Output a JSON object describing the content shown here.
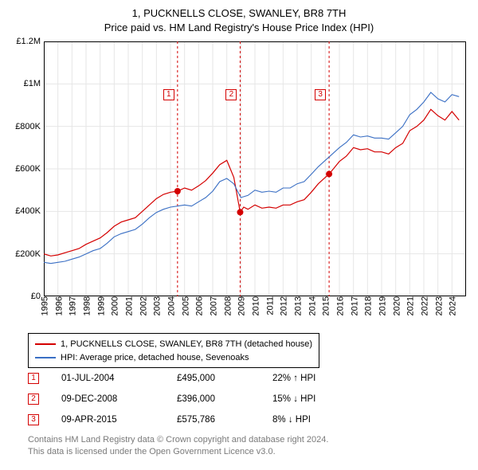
{
  "title": "1, PUCKNELLS CLOSE, SWANLEY, BR8 7TH",
  "subtitle": "Price paid vs. HM Land Registry's House Price Index (HPI)",
  "chart": {
    "type": "line",
    "background_color": "#ffffff",
    "grid_color": "#e6e6e6",
    "axis_color": "#000000",
    "font_size_ticks": 11,
    "xlim": [
      1995,
      2025
    ],
    "ylim": [
      0,
      1200000
    ],
    "yticks": [
      0,
      200000,
      400000,
      600000,
      800000,
      1000000,
      1200000
    ],
    "ytick_labels": [
      "£0",
      "£200K",
      "£400K",
      "£600K",
      "£800K",
      "£1M",
      "£1.2M"
    ],
    "xticks": [
      1995,
      1996,
      1997,
      1998,
      1999,
      2000,
      2001,
      2002,
      2003,
      2004,
      2005,
      2006,
      2007,
      2008,
      2009,
      2010,
      2011,
      2012,
      2013,
      2014,
      2015,
      2016,
      2017,
      2018,
      2019,
      2020,
      2021,
      2022,
      2023,
      2024
    ],
    "series": [
      {
        "name": "1, PUCKNELLS CLOSE, SWANLEY, BR8 7TH (detached house)",
        "color": "#d40000",
        "line_width": 1.2,
        "points": [
          [
            1995.0,
            200000
          ],
          [
            1995.5,
            190000
          ],
          [
            1996.0,
            195000
          ],
          [
            1996.5,
            205000
          ],
          [
            1997.0,
            215000
          ],
          [
            1997.5,
            225000
          ],
          [
            1998.0,
            245000
          ],
          [
            1998.5,
            260000
          ],
          [
            1999.0,
            275000
          ],
          [
            1999.5,
            300000
          ],
          [
            2000.0,
            330000
          ],
          [
            2000.5,
            350000
          ],
          [
            2001.0,
            360000
          ],
          [
            2001.5,
            370000
          ],
          [
            2002.0,
            400000
          ],
          [
            2002.5,
            430000
          ],
          [
            2003.0,
            460000
          ],
          [
            2003.5,
            480000
          ],
          [
            2004.0,
            490000
          ],
          [
            2004.5,
            495000
          ],
          [
            2005.0,
            510000
          ],
          [
            2005.5,
            500000
          ],
          [
            2006.0,
            520000
          ],
          [
            2006.5,
            545000
          ],
          [
            2007.0,
            580000
          ],
          [
            2007.5,
            620000
          ],
          [
            2008.0,
            640000
          ],
          [
            2008.5,
            560000
          ],
          [
            2008.95,
            396000
          ],
          [
            2009.2,
            420000
          ],
          [
            2009.5,
            410000
          ],
          [
            2010.0,
            430000
          ],
          [
            2010.5,
            415000
          ],
          [
            2011.0,
            420000
          ],
          [
            2011.5,
            415000
          ],
          [
            2012.0,
            430000
          ],
          [
            2012.5,
            430000
          ],
          [
            2013.0,
            445000
          ],
          [
            2013.5,
            455000
          ],
          [
            2014.0,
            490000
          ],
          [
            2014.5,
            530000
          ],
          [
            2015.0,
            560000
          ],
          [
            2015.27,
            575786
          ],
          [
            2015.7,
            610000
          ],
          [
            2016.0,
            635000
          ],
          [
            2016.5,
            660000
          ],
          [
            2017.0,
            700000
          ],
          [
            2017.5,
            690000
          ],
          [
            2018.0,
            695000
          ],
          [
            2018.5,
            680000
          ],
          [
            2019.0,
            680000
          ],
          [
            2019.5,
            670000
          ],
          [
            2020.0,
            700000
          ],
          [
            2020.5,
            720000
          ],
          [
            2021.0,
            780000
          ],
          [
            2021.5,
            800000
          ],
          [
            2022.0,
            830000
          ],
          [
            2022.5,
            880000
          ],
          [
            2023.0,
            850000
          ],
          [
            2023.5,
            830000
          ],
          [
            2024.0,
            870000
          ],
          [
            2024.5,
            830000
          ]
        ]
      },
      {
        "name": "HPI: Average price, detached house, Sevenoaks",
        "color": "#3a6fc4",
        "line_width": 1.1,
        "points": [
          [
            1995.0,
            160000
          ],
          [
            1995.5,
            155000
          ],
          [
            1996.0,
            160000
          ],
          [
            1996.5,
            165000
          ],
          [
            1997.0,
            175000
          ],
          [
            1997.5,
            185000
          ],
          [
            1998.0,
            200000
          ],
          [
            1998.5,
            215000
          ],
          [
            1999.0,
            225000
          ],
          [
            1999.5,
            250000
          ],
          [
            2000.0,
            280000
          ],
          [
            2000.5,
            295000
          ],
          [
            2001.0,
            305000
          ],
          [
            2001.5,
            315000
          ],
          [
            2002.0,
            340000
          ],
          [
            2002.5,
            370000
          ],
          [
            2003.0,
            395000
          ],
          [
            2003.5,
            410000
          ],
          [
            2004.0,
            420000
          ],
          [
            2004.5,
            425000
          ],
          [
            2005.0,
            430000
          ],
          [
            2005.5,
            425000
          ],
          [
            2006.0,
            445000
          ],
          [
            2006.5,
            465000
          ],
          [
            2007.0,
            495000
          ],
          [
            2007.5,
            540000
          ],
          [
            2008.0,
            555000
          ],
          [
            2008.5,
            530000
          ],
          [
            2009.0,
            465000
          ],
          [
            2009.5,
            475000
          ],
          [
            2010.0,
            500000
          ],
          [
            2010.5,
            490000
          ],
          [
            2011.0,
            495000
          ],
          [
            2011.5,
            490000
          ],
          [
            2012.0,
            510000
          ],
          [
            2012.5,
            510000
          ],
          [
            2013.0,
            530000
          ],
          [
            2013.5,
            540000
          ],
          [
            2014.0,
            575000
          ],
          [
            2014.5,
            610000
          ],
          [
            2015.0,
            640000
          ],
          [
            2015.5,
            670000
          ],
          [
            2016.0,
            700000
          ],
          [
            2016.5,
            725000
          ],
          [
            2017.0,
            760000
          ],
          [
            2017.5,
            750000
          ],
          [
            2018.0,
            755000
          ],
          [
            2018.5,
            745000
          ],
          [
            2019.0,
            745000
          ],
          [
            2019.5,
            740000
          ],
          [
            2020.0,
            770000
          ],
          [
            2020.5,
            800000
          ],
          [
            2021.0,
            855000
          ],
          [
            2021.5,
            880000
          ],
          [
            2022.0,
            915000
          ],
          [
            2022.5,
            960000
          ],
          [
            2023.0,
            930000
          ],
          [
            2023.5,
            915000
          ],
          [
            2024.0,
            950000
          ],
          [
            2024.5,
            940000
          ]
        ]
      }
    ],
    "event_lines": {
      "color": "#d40000",
      "dash": "3,3",
      "x": [
        2004.5,
        2008.95,
        2015.27
      ]
    },
    "event_points": {
      "color": "#d40000",
      "radius": 4,
      "points": [
        {
          "x": 2004.5,
          "y": 495000
        },
        {
          "x": 2008.95,
          "y": 396000
        },
        {
          "x": 2015.27,
          "y": 575786
        }
      ]
    },
    "event_markers": [
      {
        "label": "1",
        "x": 2004.5
      },
      {
        "label": "2",
        "x": 2008.95
      },
      {
        "label": "3",
        "x": 2015.27
      }
    ],
    "marker_box_color": "#d40000"
  },
  "legend": {
    "border_color": "#000000",
    "items": [
      {
        "color": "#d40000",
        "label": "1, PUCKNELLS CLOSE, SWANLEY, BR8 7TH (detached house)"
      },
      {
        "color": "#3a6fc4",
        "label": "HPI: Average price, detached house, Sevenoaks"
      }
    ]
  },
  "transactions": [
    {
      "marker": "1",
      "date": "01-JUL-2004",
      "price": "£495,000",
      "delta": "22% ↑ HPI"
    },
    {
      "marker": "2",
      "date": "09-DEC-2008",
      "price": "£396,000",
      "delta": "15% ↓ HPI"
    },
    {
      "marker": "3",
      "date": "09-APR-2015",
      "price": "£575,786",
      "delta": "8% ↓ HPI"
    }
  ],
  "footer": {
    "line1": "Contains HM Land Registry data © Crown copyright and database right 2024.",
    "line2": "This data is licensed under the Open Government Licence v3.0.",
    "color": "#7a7a7a"
  }
}
